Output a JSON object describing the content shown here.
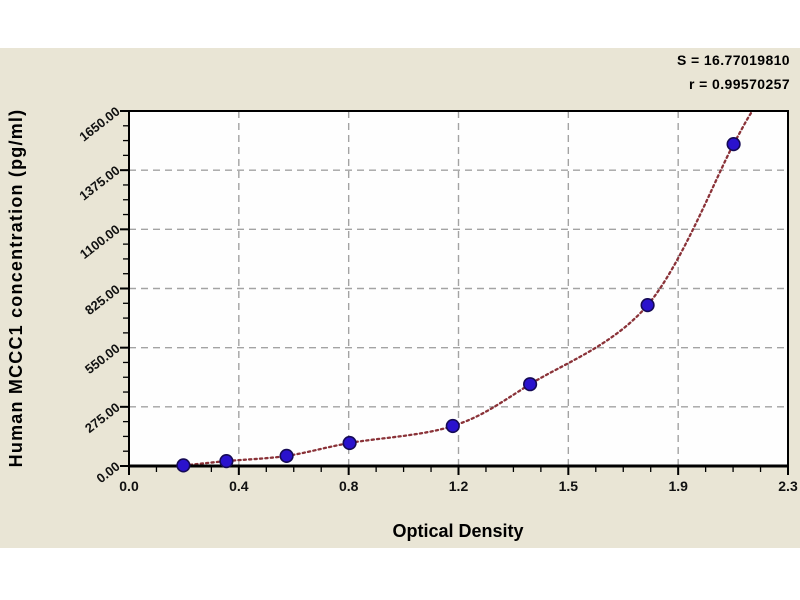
{
  "stats": {
    "s_label": "S = 16.77019810",
    "r_label": "r = 0.99570257"
  },
  "chart_data": {
    "type": "scatter",
    "title": "",
    "xlabel": "Optical Density",
    "ylabel": "Human MCCC1 concentration (pg/ml)",
    "x_range": [
      0,
      2.3
    ],
    "y_range": [
      0,
      1650
    ],
    "grid": true,
    "legend": "none",
    "x_ticks": [
      {
        "value": 0.0,
        "label": "0.0"
      },
      {
        "value": 0.3833,
        "label": "0.4"
      },
      {
        "value": 0.7667,
        "label": "0.8"
      },
      {
        "value": 1.15,
        "label": "1.2"
      },
      {
        "value": 1.5333,
        "label": "1.5"
      },
      {
        "value": 1.9167,
        "label": "1.9"
      },
      {
        "value": 2.3,
        "label": "2.3"
      }
    ],
    "y_ticks": [
      {
        "value": 0,
        "label": "0.00"
      },
      {
        "value": 275,
        "label": "275.00"
      },
      {
        "value": 550,
        "label": "550.00"
      },
      {
        "value": 825,
        "label": "825.00"
      },
      {
        "value": 1100,
        "label": "1100.00"
      },
      {
        "value": 1375,
        "label": "1375.00"
      },
      {
        "value": 1650,
        "label": "1650.00"
      }
    ],
    "minor_intervals_per_major": 4,
    "points": [
      {
        "od": 0.19,
        "conc": 3
      },
      {
        "od": 0.34,
        "conc": 23
      },
      {
        "od": 0.55,
        "conc": 47
      },
      {
        "od": 0.77,
        "conc": 107
      },
      {
        "od": 1.13,
        "conc": 186
      },
      {
        "od": 1.4,
        "conc": 380
      },
      {
        "od": 1.81,
        "conc": 748
      },
      {
        "od": 2.11,
        "conc": 1496
      }
    ],
    "curve_extension": {
      "start": [
        0.1,
        0
      ],
      "end": [
        2.175,
        1650
      ]
    },
    "colors": {
      "background": "#e9e5d5",
      "plot_bg": "#fefefe",
      "curve": "#8a3238",
      "marker_fill": "#2a12cd",
      "marker_edge": "#150a55",
      "grid": "#a3a3a3",
      "axis": "#000000",
      "text": "#111111"
    }
  }
}
